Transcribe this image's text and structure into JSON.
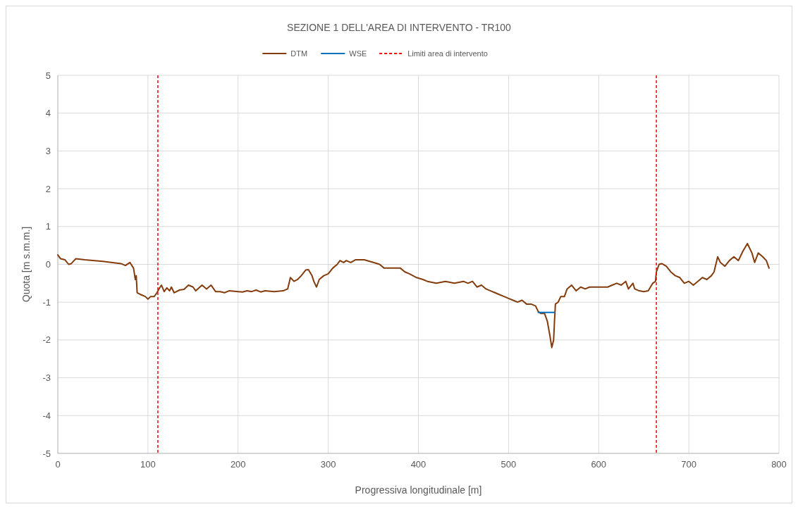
{
  "chart_data": {
    "type": "line",
    "title": "SEZIONE 1 DELL'AREA DI INTERVENTO - TR100",
    "xlabel": "Progressiva longitudinale [m]",
    "ylabel": "Quota [m s.m.m.]",
    "xlim": [
      0,
      800
    ],
    "xticks": [
      0,
      100,
      200,
      300,
      400,
      500,
      600,
      700,
      800
    ],
    "ylim": [
      -5,
      5
    ],
    "yticks": [
      -5,
      -4,
      -3,
      -2,
      -1,
      0,
      1,
      2,
      3,
      4,
      5
    ],
    "grid": true,
    "legend": "top",
    "line_style": "solid",
    "marker": "none",
    "series": [
      {
        "name": "DTM",
        "color": "#843c0c",
        "x": [
          0,
          3,
          8,
          12,
          15,
          18,
          20,
          30,
          50,
          70,
          75,
          80,
          84,
          86,
          87,
          88,
          92,
          97,
          100,
          103,
          107,
          110,
          113,
          115,
          118,
          121,
          124,
          126,
          129,
          135,
          140,
          145,
          150,
          153,
          160,
          165,
          170,
          175,
          180,
          185,
          190,
          200,
          205,
          210,
          215,
          220,
          225,
          230,
          240,
          250,
          255,
          258,
          262,
          266,
          270,
          275,
          278,
          282,
          284,
          287,
          290,
          295,
          300,
          305,
          310,
          313,
          317,
          320,
          325,
          330,
          340,
          350,
          357,
          362,
          370,
          380,
          385,
          390,
          398,
          405,
          410,
          420,
          430,
          440,
          450,
          455,
          460,
          465,
          470,
          475,
          480,
          485,
          490,
          495,
          500,
          505,
          510,
          515,
          520,
          525,
          530,
          533,
          536,
          540,
          543,
          546,
          548,
          550,
          551,
          552,
          555,
          558,
          562,
          565,
          570,
          575,
          580,
          585,
          590,
          600,
          610,
          615,
          620,
          625,
          630,
          633,
          638,
          640,
          645,
          650,
          655,
          660,
          663,
          664,
          667,
          670,
          675,
          680,
          685,
          690,
          695,
          700,
          705,
          710,
          715,
          720,
          725,
          728,
          732,
          735,
          740,
          745,
          750,
          755,
          760,
          765,
          770,
          773,
          777,
          782,
          786,
          789
        ],
        "values": [
          0.25,
          0.15,
          0.12,
          0,
          0.02,
          0.1,
          0.15,
          0.12,
          0.08,
          0.02,
          -0.03,
          0.05,
          -0.1,
          -0.4,
          -0.3,
          -0.75,
          -0.8,
          -0.85,
          -0.92,
          -0.85,
          -0.85,
          -0.75,
          -0.62,
          -0.55,
          -0.72,
          -0.62,
          -0.7,
          -0.6,
          -0.75,
          -0.68,
          -0.66,
          -0.55,
          -0.6,
          -0.7,
          -0.55,
          -0.65,
          -0.55,
          -0.72,
          -0.72,
          -0.75,
          -0.7,
          -0.72,
          -0.73,
          -0.7,
          -0.72,
          -0.68,
          -0.73,
          -0.7,
          -0.72,
          -0.7,
          -0.65,
          -0.35,
          -0.45,
          -0.4,
          -0.3,
          -0.15,
          -0.14,
          -0.3,
          -0.45,
          -0.6,
          -0.4,
          -0.3,
          -0.25,
          -0.1,
          0,
          0.1,
          0.05,
          0.1,
          0.05,
          0.12,
          0.12,
          0.05,
          0,
          -0.1,
          -0.1,
          -0.1,
          -0.2,
          -0.25,
          -0.35,
          -0.4,
          -0.45,
          -0.5,
          -0.45,
          -0.5,
          -0.45,
          -0.5,
          -0.45,
          -0.6,
          -0.55,
          -0.65,
          -0.7,
          -0.75,
          -0.8,
          -0.85,
          -0.9,
          -0.95,
          -1.0,
          -0.95,
          -1.05,
          -1.05,
          -1.1,
          -1.25,
          -1.3,
          -1.3,
          -1.5,
          -1.9,
          -2.2,
          -2.0,
          -1.5,
          -1.05,
          -1.0,
          -0.85,
          -0.85,
          -0.65,
          -0.55,
          -0.7,
          -0.6,
          -0.65,
          -0.6,
          -0.6,
          -0.6,
          -0.55,
          -0.5,
          -0.55,
          -0.45,
          -0.65,
          -0.5,
          -0.65,
          -0.7,
          -0.72,
          -0.7,
          -0.5,
          -0.45,
          -0.2,
          0,
          0.02,
          -0.05,
          -0.2,
          -0.3,
          -0.35,
          -0.5,
          -0.45,
          -0.55,
          -0.45,
          -0.35,
          -0.4,
          -0.3,
          -0.2,
          0.2,
          0.05,
          -0.05,
          0.1,
          0.2,
          0.1,
          0.35,
          0.55,
          0.3,
          0.05,
          0.3,
          0.2,
          0.1,
          -0.1
        ]
      },
      {
        "name": "WSE",
        "color": "#0070c0",
        "x": [
          533,
          551
        ],
        "values": [
          -1.27,
          -1.27
        ]
      }
    ],
    "ref_lines": [
      {
        "axis": "x",
        "value": 111,
        "label": "Limiti area di intervento",
        "color": "#ff0000",
        "line_style": "dashed"
      },
      {
        "axis": "x",
        "value": 664,
        "label": null,
        "color": "#ff0000",
        "line_style": "dashed"
      }
    ]
  }
}
